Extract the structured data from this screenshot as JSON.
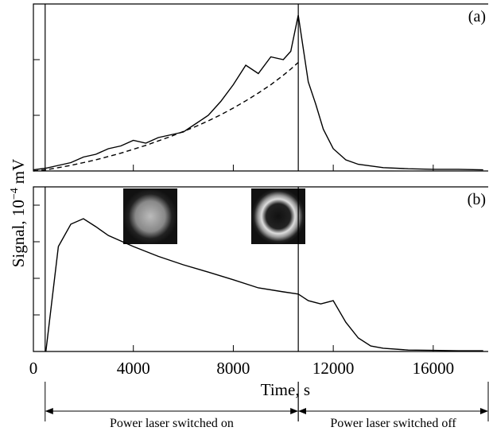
{
  "chart_data": [
    {
      "type": "line",
      "label": "(a)",
      "xlim": [
        0,
        18200
      ],
      "ylim": [
        0,
        3
      ],
      "xticks": [
        0,
        4000,
        8000,
        12000,
        16000
      ],
      "yticks": [
        1,
        2
      ],
      "vlines": [
        470,
        10600
      ],
      "x": [
        0,
        500,
        1000,
        1500,
        2000,
        2500,
        3000,
        3500,
        4000,
        4500,
        5000,
        5500,
        6000,
        6500,
        7000,
        7500,
        8000,
        8500,
        9000,
        9500,
        10000,
        10300,
        10600,
        10800,
        11000,
        11300,
        11600,
        12000,
        12500,
        13000,
        14000,
        15000,
        16000,
        17000,
        18000
      ],
      "series": [
        {
          "color": "#000",
          "dash": false,
          "values": [
            0.02,
            0.05,
            0.1,
            0.15,
            0.25,
            0.3,
            0.4,
            0.45,
            0.55,
            0.5,
            0.6,
            0.65,
            0.7,
            0.85,
            1.0,
            1.25,
            1.55,
            1.9,
            1.75,
            2.05,
            2.0,
            2.15,
            2.8,
            2.2,
            1.6,
            1.2,
            0.75,
            0.4,
            0.2,
            0.12,
            0.06,
            0.04,
            0.03,
            0.03,
            0.02
          ]
        },
        {
          "color": "#000",
          "dash": true,
          "values": [
            0,
            0.02,
            0.06,
            0.1,
            0.15,
            0.2,
            0.26,
            0.32,
            0.39,
            0.46,
            0.54,
            0.62,
            0.71,
            0.8,
            0.9,
            1.01,
            1.13,
            1.26,
            1.4,
            1.55,
            1.72,
            1.83,
            1.95,
            null,
            null,
            null,
            null,
            null,
            null,
            null,
            null,
            null,
            null,
            null,
            null
          ]
        }
      ]
    },
    {
      "type": "line",
      "label": "(b)",
      "xlim": [
        0,
        18200
      ],
      "ylim": [
        0,
        4.5
      ],
      "xticks": [
        0,
        4000,
        8000,
        12000,
        16000
      ],
      "yticks": [
        1,
        2,
        3,
        4
      ],
      "vlines": [
        470,
        10600
      ],
      "xlabel": "Time, s",
      "ylabel": "Signal, 10",
      "ylabel_exponent": "−4",
      "ylabel_unit": "mV",
      "x": [
        500,
        1000,
        1500,
        2000,
        2500,
        3000,
        4000,
        5000,
        6000,
        7000,
        8000,
        9000,
        10000,
        10600,
        11000,
        11500,
        12000,
        12500,
        13000,
        13500,
        14000,
        15000,
        16000,
        17000,
        18000
      ],
      "series": [
        {
          "color": "#000",
          "dash": false,
          "values": [
            0,
            2.87,
            3.48,
            3.63,
            3.41,
            3.17,
            2.87,
            2.6,
            2.37,
            2.17,
            1.96,
            1.74,
            1.63,
            1.57,
            1.39,
            1.3,
            1.39,
            0.8,
            0.37,
            0.15,
            0.09,
            0.04,
            0.03,
            0.02,
            0.02
          ]
        }
      ],
      "annotations": [
        {
          "text": "Power laser switched on",
          "from": 470,
          "to": 10600
        },
        {
          "text": "Power laser switched off",
          "from": 10600,
          "to": 18200
        }
      ]
    }
  ]
}
